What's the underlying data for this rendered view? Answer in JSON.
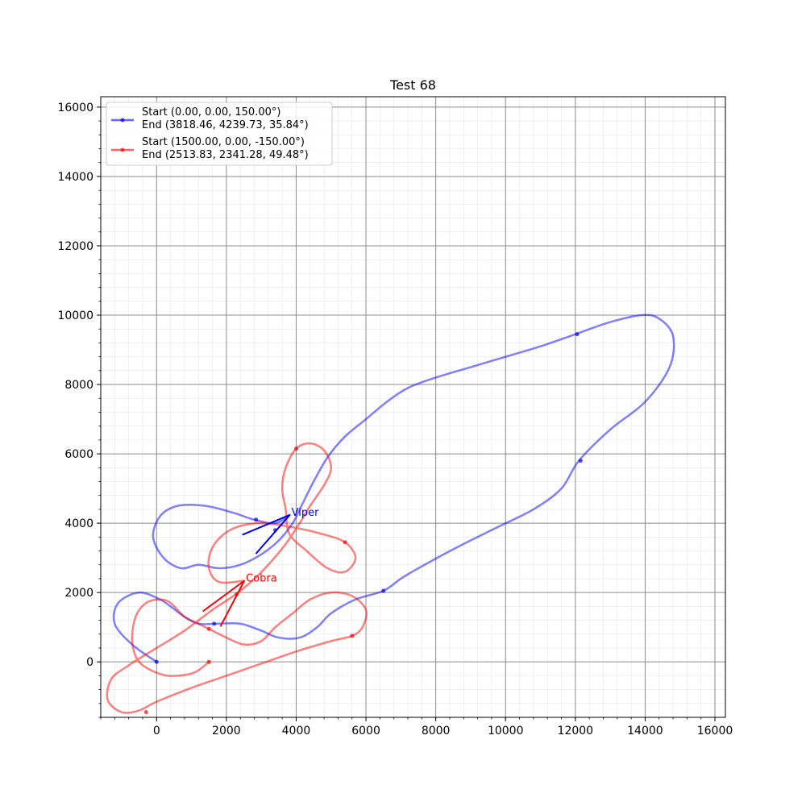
{
  "chart_data": {
    "type": "line",
    "title": "Test 68",
    "xlabel": "",
    "ylabel": "",
    "xlim": [
      -1600,
      16300
    ],
    "ylim": [
      -1600,
      16300
    ],
    "x_ticks": [
      0,
      2000,
      4000,
      6000,
      8000,
      10000,
      12000,
      14000,
      16000
    ],
    "y_ticks": [
      0,
      2000,
      4000,
      6000,
      8000,
      10000,
      12000,
      14000,
      16000
    ],
    "minor_step": 400,
    "grid": true,
    "legend_position": "top-left",
    "series": [
      {
        "name": "Start (0.00, 0.00, 150.00°)\n End  (3818.46, 4239.73, 35.84°)",
        "color": "#0000ff",
        "points": [
          [
            0,
            0
          ],
          [
            -700,
            500
          ],
          [
            -1200,
            1100
          ],
          [
            -1100,
            1700
          ],
          [
            -500,
            2000
          ],
          [
            100,
            1800
          ],
          [
            400,
            1600
          ],
          [
            800,
            1300
          ],
          [
            1200,
            1100
          ],
          [
            1700,
            1100
          ],
          [
            2400,
            1100
          ],
          [
            3000,
            900
          ],
          [
            3500,
            700
          ],
          [
            4100,
            700
          ],
          [
            4600,
            1000
          ],
          [
            5000,
            1400
          ],
          [
            5700,
            1800
          ],
          [
            6500,
            2050
          ],
          [
            7000,
            2400
          ],
          [
            7500,
            2700
          ],
          [
            8600,
            3300
          ],
          [
            9800,
            3900
          ],
          [
            10800,
            4400
          ],
          [
            11600,
            5000
          ],
          [
            12100,
            5800
          ],
          [
            13000,
            6700
          ],
          [
            14000,
            7500
          ],
          [
            14700,
            8500
          ],
          [
            14800,
            9400
          ],
          [
            14400,
            9900
          ],
          [
            13900,
            10000
          ],
          [
            13000,
            9800
          ],
          [
            12000,
            9450
          ],
          [
            11000,
            9100
          ],
          [
            10000,
            8800
          ],
          [
            9000,
            8500
          ],
          [
            8000,
            8200
          ],
          [
            7200,
            7900
          ],
          [
            6600,
            7500
          ],
          [
            6000,
            7000
          ],
          [
            5400,
            6500
          ],
          [
            4900,
            5900
          ],
          [
            4500,
            5200
          ],
          [
            4200,
            4600
          ],
          [
            3900,
            4000
          ],
          [
            3500,
            3500
          ],
          [
            3000,
            3100
          ],
          [
            2400,
            2800
          ],
          [
            1800,
            2700
          ],
          [
            1200,
            2800
          ],
          [
            700,
            2700
          ],
          [
            200,
            3000
          ],
          [
            -100,
            3600
          ],
          [
            100,
            4200
          ],
          [
            600,
            4500
          ],
          [
            1400,
            4500
          ],
          [
            2200,
            4300
          ],
          [
            2800,
            4100
          ],
          [
            3400,
            4000
          ],
          [
            3818.46,
            4239.73
          ]
        ],
        "dots": [
          [
            0,
            0
          ],
          [
            1650,
            1100
          ],
          [
            6500,
            2050
          ],
          [
            12150,
            5800
          ],
          [
            12050,
            9450
          ],
          [
            2850,
            4100
          ],
          [
            3400,
            3800
          ]
        ]
      },
      {
        "name": "Start (1500.00, 0.00, -150.00°)\n End  (2513.83, 2341.28, 49.48°)",
        "color": "#ff0000",
        "points": [
          [
            1500,
            0
          ],
          [
            1100,
            -300
          ],
          [
            600,
            -400
          ],
          [
            100,
            -350
          ],
          [
            -500,
            0
          ],
          [
            -700,
            600
          ],
          [
            -600,
            1300
          ],
          [
            -300,
            1700
          ],
          [
            100,
            1800
          ],
          [
            400,
            1700
          ],
          [
            800,
            1300
          ],
          [
            1200,
            1100
          ],
          [
            1600,
            900
          ],
          [
            2000,
            700
          ],
          [
            2500,
            500
          ],
          [
            3000,
            600
          ],
          [
            3400,
            1000
          ],
          [
            3900,
            1400
          ],
          [
            4400,
            1800
          ],
          [
            5000,
            2000
          ],
          [
            5600,
            1900
          ],
          [
            6000,
            1500
          ],
          [
            5900,
            1000
          ],
          [
            5600,
            750
          ],
          [
            5000,
            600
          ],
          [
            4000,
            300
          ],
          [
            3000,
            -50
          ],
          [
            2000,
            -400
          ],
          [
            1000,
            -750
          ],
          [
            0,
            -1150
          ],
          [
            -500,
            -1400
          ],
          [
            -1000,
            -1450
          ],
          [
            -1400,
            -1100
          ],
          [
            -1300,
            -500
          ],
          [
            -800,
            -100
          ],
          [
            0,
            400
          ],
          [
            800,
            900
          ],
          [
            1600,
            1500
          ],
          [
            2200,
            1900
          ],
          [
            2700,
            2300
          ],
          [
            3200,
            2800
          ],
          [
            3700,
            3400
          ],
          [
            4100,
            4000
          ],
          [
            4400,
            4500
          ],
          [
            4800,
            5100
          ],
          [
            5000,
            5600
          ],
          [
            4800,
            6100
          ],
          [
            4400,
            6300
          ],
          [
            4000,
            6150
          ],
          [
            3700,
            5600
          ],
          [
            3600,
            5000
          ],
          [
            3700,
            4400
          ],
          [
            3800,
            3700
          ],
          [
            4300,
            3200
          ],
          [
            4900,
            2700
          ],
          [
            5400,
            2600
          ],
          [
            5700,
            3000
          ],
          [
            5400,
            3450
          ],
          [
            4700,
            3700
          ],
          [
            3800,
            3900
          ],
          [
            2900,
            4000
          ],
          [
            2100,
            3800
          ],
          [
            1600,
            3300
          ],
          [
            1500,
            2700
          ],
          [
            1800,
            2300
          ],
          [
            2513.83,
            2341.28
          ]
        ],
        "dots": [
          [
            1500,
            0
          ],
          [
            -300,
            -1450
          ],
          [
            1500,
            950
          ],
          [
            2300,
            1950
          ],
          [
            5600,
            750
          ],
          [
            5400,
            3450
          ],
          [
            4000,
            6150
          ]
        ]
      }
    ],
    "markers": [
      {
        "label": "Viper",
        "color": "#0000ff",
        "x": 3818.46,
        "y": 4239.73,
        "heading_deg": 35.84
      },
      {
        "label": "Cobra",
        "color": "#ff0000",
        "x": 2513.83,
        "y": 2341.28,
        "heading_deg": 49.48
      }
    ]
  }
}
